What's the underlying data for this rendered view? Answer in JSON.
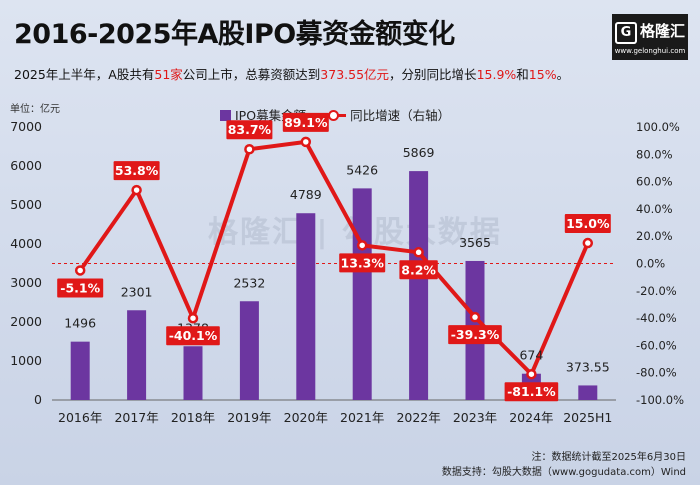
{
  "header": {
    "title": "2016-2025年A股IPO募资金额变化",
    "subtitle_parts": [
      {
        "text": "2025年上半年，A股共有",
        "hl": false
      },
      {
        "text": "51家",
        "hl": true
      },
      {
        "text": "公司上市，总募资额达到",
        "hl": false
      },
      {
        "text": "373.55亿元",
        "hl": true
      },
      {
        "text": "，分别同比增长",
        "hl": false
      },
      {
        "text": "15.9%",
        "hl": true
      },
      {
        "text": "和",
        "hl": false
      },
      {
        "text": "15%",
        "hl": true
      },
      {
        "text": "。",
        "hl": false
      }
    ]
  },
  "logo": {
    "mark_letter": "G",
    "name": "格隆汇",
    "url": "www.gelonghui.com"
  },
  "watermark": "格隆汇 | 勾股大数据",
  "legend": {
    "bar": "IPO募集金额",
    "line": "同比增速（右轴）"
  },
  "unit_label": "单位：亿元",
  "notes": {
    "note": "注：数据统计截至2025年6月30日",
    "source": "数据支持：勾股大数据（www.gogudata.com）Wind"
  },
  "colors": {
    "bar": "#6c36a0",
    "line": "#e01818",
    "label_bg": "#e01818",
    "zero_line": "#e01818"
  },
  "chart_data": {
    "type": "bar",
    "categories": [
      "2016年",
      "2017年",
      "2018年",
      "2019年",
      "2020年",
      "2021年",
      "2022年",
      "2023年",
      "2024年",
      "2025H1"
    ],
    "series": [
      {
        "name": "IPO募集金额",
        "type": "bar",
        "axis": "left",
        "values": [
          1496,
          2301,
          1378,
          2532,
          4789,
          5426,
          5869,
          3565,
          674,
          373.55
        ],
        "labels": [
          "1496",
          "2301",
          "1378",
          "2532",
          "4789",
          "5426",
          "5869",
          "3565",
          "674",
          "373.55"
        ]
      },
      {
        "name": "同比增速（右轴）",
        "type": "line",
        "axis": "right",
        "values": [
          -5.1,
          53.8,
          -40.1,
          83.7,
          89.1,
          13.3,
          8.2,
          -39.3,
          -81.1,
          15.0
        ],
        "labels": [
          "-5.1%",
          "53.8%",
          "-40.1%",
          "83.7%",
          "89.1%",
          "13.3%",
          "8.2%",
          "-39.3%",
          "-81.1%",
          "15.0%"
        ]
      }
    ],
    "left_axis": {
      "ylim": [
        0,
        7000
      ],
      "ticks": [
        "0",
        "1000",
        "2000",
        "3000",
        "4000",
        "5000",
        "6000",
        "7000"
      ]
    },
    "right_axis": {
      "ylim": [
        -100,
        100
      ],
      "ticks": [
        "-100.0%",
        "-80.0%",
        "-60.0%",
        "-40.0%",
        "-20.0%",
        "0.0%",
        "20.0%",
        "40.0%",
        "60.0%",
        "80.0%",
        "100.0%"
      ]
    },
    "grid": false,
    "legend_position": "top-center"
  }
}
